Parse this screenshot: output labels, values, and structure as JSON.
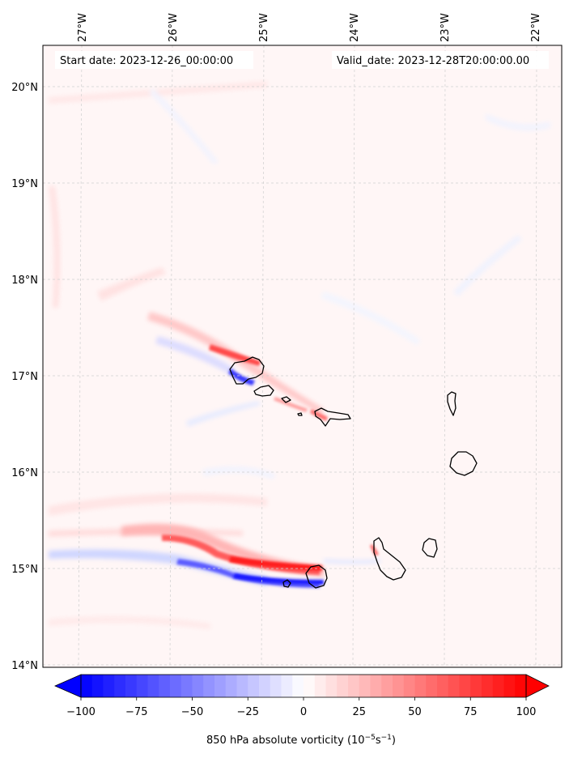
{
  "header": {
    "start_date": "Start date: 2023-12-26_00:00:00",
    "valid_date": "Valid_date: 2023-12-28T20:00:00.00"
  },
  "map": {
    "lon_labels": [
      "27°W",
      "26°W",
      "25°W",
      "24°W",
      "23°W",
      "22°W"
    ],
    "lat_labels": [
      "20°N",
      "19°N",
      "18°N",
      "17°N",
      "16°N",
      "15°N",
      "14°N"
    ]
  },
  "colorbar": {
    "min": -100,
    "max": 100,
    "tick_labels": [
      "−100",
      "−75",
      "−50",
      "−25",
      "0",
      "25",
      "50",
      "75",
      "100"
    ],
    "label_main": "850 hPa absolute vorticity (10",
    "label_exp1": "−5",
    "label_mid": "s",
    "label_exp2": "−1",
    "label_end": ")"
  },
  "colors": {
    "negative": "#0000ff",
    "positive": "#ff0000",
    "neutral": "#ffffff",
    "coastline": "#000000",
    "grid": "#c8c8c8"
  }
}
